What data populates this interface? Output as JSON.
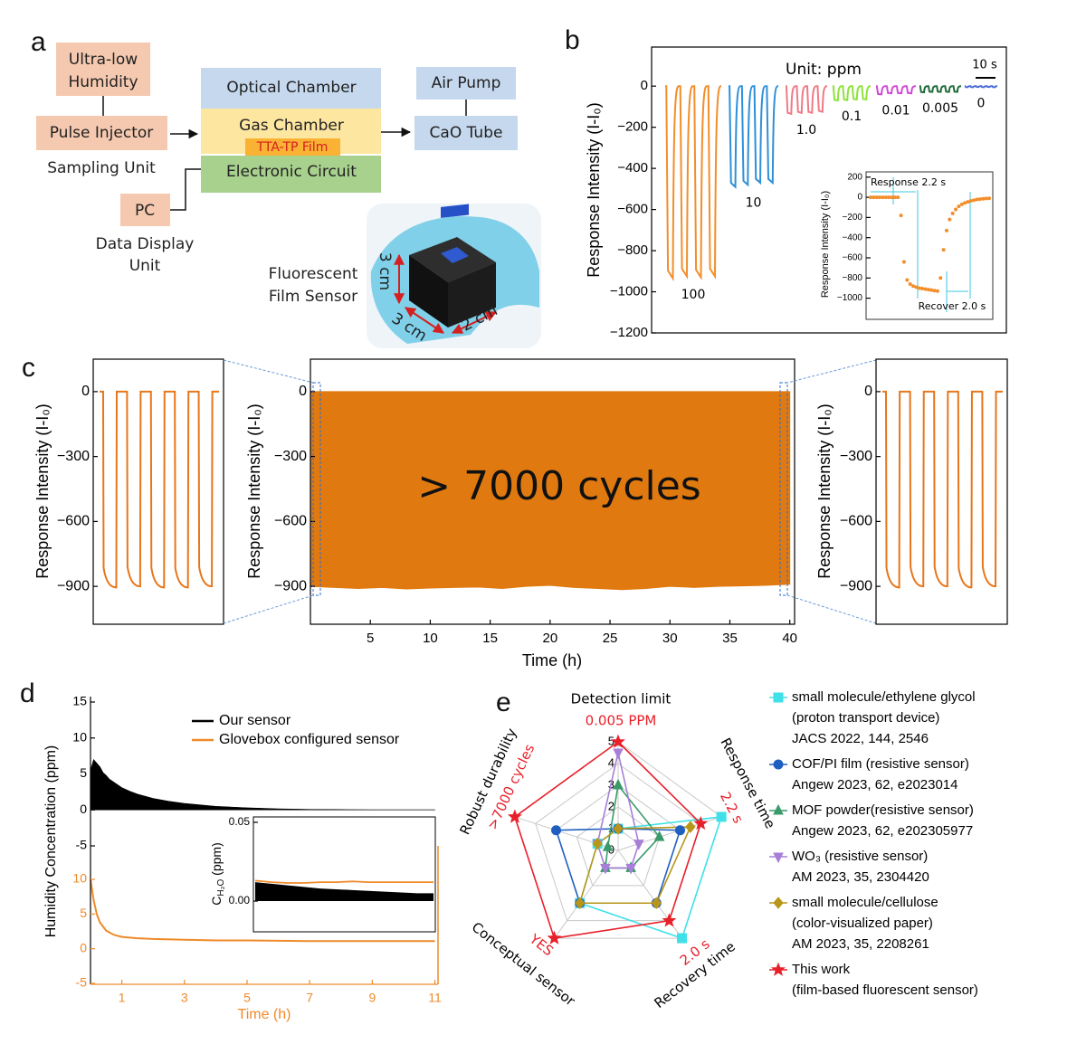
{
  "panel_labels": [
    "a",
    "b",
    "c",
    "d",
    "e"
  ],
  "diagram": {
    "ultra_low_humidity": [
      "Ultra-low",
      "Humidity"
    ],
    "pulse_injector": "Pulse Injector",
    "sampling_unit": "Sampling Unit",
    "pc": "PC",
    "data_display_unit": [
      "Data Display",
      "Unit"
    ],
    "optical_chamber": "Optical Chamber",
    "gas_chamber": "Gas Chamber",
    "film": "TTA-TP Film",
    "electronic_circuit": "Electronic Circuit",
    "air_pump": "Air Pump",
    "cao_tube": "CaO Tube",
    "sensor_caption": [
      "Fluorescent",
      "Film Sensor"
    ],
    "dimensions": [
      "3 cm",
      "3 cm",
      "2 cm"
    ]
  },
  "chart_data": [
    {
      "type": "pulses",
      "y_label": "Response Intensity (I-I₀)",
      "annotation": "Unit: ppm",
      "scale_bar": "10 s",
      "ylim": [
        -1200,
        190
      ],
      "yticks": [
        0,
        {
          "value": -200,
          "label": "−200"
        },
        {
          "value": -400,
          "label": "−400"
        },
        {
          "value": -600,
          "label": "−600"
        },
        {
          "value": -800,
          "label": "−800"
        },
        {
          "value": -1000,
          "label": "−1000"
        },
        {
          "value": -1200,
          "label": "−1200"
        }
      ],
      "series": [
        {
          "name": "100",
          "color": "#f28e2b",
          "values": [
            -935,
            -925,
            -930,
            -925
          ]
        },
        {
          "name": "10",
          "color": "#2e8fd8",
          "values": [
            -490,
            -480,
            -470,
            -470
          ]
        },
        {
          "name": "1.0",
          "color": "#f07a86",
          "values": [
            -135,
            -130,
            -130,
            -125
          ]
        },
        {
          "name": "0.1",
          "color": "#8ee23a",
          "values": [
            -70,
            -68,
            -65,
            -65
          ]
        },
        {
          "name": "0.01",
          "color": "#d24ad8",
          "values": [
            -40,
            -35,
            -35,
            -35
          ]
        },
        {
          "name": "0.005",
          "color": "#1f6a3a",
          "values": [
            -30,
            -28,
            -28,
            -28,
            -28
          ]
        },
        {
          "name": "0",
          "color": "#4a6ad8",
          "values": [
            -5,
            -5,
            -4,
            -5,
            -4,
            -5
          ]
        }
      ]
    },
    {
      "type": "scatter",
      "y_label": "Response Intensity (I-I₀)",
      "annotations": [
        "Response 2.2 s",
        "Recover 2.0 s"
      ],
      "color": "#f28e2b",
      "ylim": [
        -1210,
        252
      ],
      "yticks": [
        200,
        0,
        {
          "value": -200,
          "label": "−200"
        },
        {
          "value": -400,
          "label": "−400"
        },
        {
          "value": -600,
          "label": "−600"
        },
        {
          "value": -800,
          "label": "−800"
        },
        {
          "value": -1000,
          "label": "−1000"
        }
      ],
      "values": [
        0,
        0,
        0,
        0,
        0,
        0,
        0,
        0,
        0,
        0,
        -180,
        -640,
        -820,
        -860,
        -880,
        -890,
        -900,
        -905,
        -910,
        -915,
        -920,
        -925,
        -930,
        -800,
        -520,
        -330,
        -220,
        -160,
        -120,
        -90,
        -70,
        -55,
        -45,
        -35,
        -28,
        -22,
        -18,
        -15,
        -12,
        -10
      ]
    },
    {
      "type": "square-pulses",
      "y_label": "Response Intensity (I-I₀)",
      "color": "#e8761a",
      "ylim": [
        -1075,
        150
      ],
      "yticks": [
        0,
        {
          "value": -300,
          "label": "−300"
        },
        {
          "value": -600,
          "label": "−600"
        },
        {
          "value": -900,
          "label": "−900"
        }
      ],
      "values": [
        -905,
        -900,
        -905,
        -905,
        -900
      ]
    },
    {
      "type": "area",
      "y_label": "Response Intensity (I-I₀)",
      "x_label": "Time (h)",
      "annotation": "> 7000 cycles",
      "color": "#e07a10",
      "xlim": [
        0,
        40.4
      ],
      "xticks": [
        5,
        10,
        15,
        20,
        25,
        30,
        35,
        40
      ],
      "ylim": [
        -1075,
        150
      ],
      "yticks": [
        0,
        {
          "value": -300,
          "label": "−300"
        },
        {
          "value": -600,
          "label": "−600"
        },
        {
          "value": -900,
          "label": "−900"
        }
      ],
      "x": [
        0,
        2,
        4,
        6,
        8,
        10,
        12,
        14,
        16,
        18,
        20,
        22,
        24,
        26,
        28,
        30,
        32,
        34,
        36,
        38,
        40
      ],
      "values": [
        -900,
        -905,
        -910,
        -905,
        -912,
        -908,
        -905,
        -903,
        -910,
        -900,
        -895,
        -905,
        -910,
        -915,
        -910,
        -900,
        -905,
        -900,
        -898,
        -895,
        -890
      ]
    },
    {
      "type": "square-pulses",
      "y_label": "Response Intensity (I-I₀)",
      "color": "#e8761a",
      "ylim": [
        -1075,
        150
      ],
      "yticks": [
        0,
        {
          "value": -300,
          "label": "−300"
        },
        {
          "value": -600,
          "label": "−600"
        },
        {
          "value": -900,
          "label": "−900"
        }
      ],
      "values": [
        -905,
        -900,
        -900,
        -905,
        -900
      ]
    },
    {
      "type": "line",
      "y_label": "Humidity Concentration (ppm)",
      "x_label": "Time (h)",
      "legend": "top-right",
      "xlim": [
        0,
        11.1
      ],
      "xticks": [
        1,
        3,
        5,
        7,
        9,
        11
      ],
      "ylim": [
        -5,
        15
      ],
      "yticks": [
        15,
        10,
        5,
        0,
        -5
      ],
      "y2lim": [
        -5,
        10
      ],
      "y2ticks": [
        10,
        5,
        0,
        -5
      ],
      "series": [
        {
          "name": "Our sensor",
          "color": "#000000",
          "x": [
            0,
            0.1,
            0.2,
            0.3,
            0.4,
            0.5,
            0.6,
            0.8,
            1,
            1.25,
            1.5,
            1.75,
            2,
            2.5,
            3,
            3.5,
            4,
            5,
            6,
            7,
            8,
            9,
            10,
            11
          ],
          "values": [
            5.5,
            7,
            6.5,
            6,
            5.2,
            4.8,
            4.3,
            3.7,
            3.1,
            2.6,
            2.2,
            1.9,
            1.6,
            1.2,
            0.9,
            0.7,
            0.5,
            0.3,
            0.15,
            0.08,
            0.05,
            0.03,
            0.02,
            0.02
          ]
        },
        {
          "name": "Glovebox configured  sensor",
          "color": "#ef8a2a",
          "axis": "y2",
          "x": [
            0,
            0.05,
            0.1,
            0.2,
            0.3,
            0.5,
            0.75,
            1,
            1.5,
            2,
            3,
            4,
            5,
            6,
            7,
            8,
            9,
            10,
            11
          ],
          "values": [
            10,
            8.5,
            7,
            5,
            3.8,
            2.6,
            2,
            1.7,
            1.5,
            1.4,
            1.3,
            1.2,
            1.2,
            1.15,
            1.1,
            1.1,
            1.1,
            1.1,
            1.1
          ]
        }
      ]
    },
    {
      "type": "line",
      "y_label": "C",
      "y_label_sub": "H₂O",
      "y_label_unit": " (ppm)",
      "ylim": [
        -0.0195,
        0.0534
      ],
      "yticks": [
        0.05,
        {
          "value": 0,
          "label": "0.00"
        }
      ],
      "series": [
        {
          "color": "#000000",
          "values": [
            0.012,
            0.011,
            0.01,
            0.009,
            0.008,
            0.0075,
            0.007,
            0.0065,
            0.006,
            0.0055,
            0.005,
            0.005
          ]
        },
        {
          "color": "#ef8a2a",
          "values": [
            0.013,
            0.012,
            0.0115,
            0.0115,
            0.012,
            0.012,
            0.0125,
            0.012,
            0.012,
            0.012,
            0.012,
            0.012
          ]
        }
      ]
    },
    {
      "type": "radar",
      "grid": true,
      "axes": [
        "Detection limit",
        "Response time",
        "Recovery time",
        "Conceptual sensor",
        "Robust durability"
      ],
      "axis_annotations": [
        "0.005 PPM",
        "2.2 s",
        "2.0 s",
        "YES",
        ">7000 cycles"
      ],
      "rlim": [
        0,
        5
      ],
      "rticks": [
        0,
        1,
        2,
        3,
        4,
        5
      ],
      "series": [
        {
          "name": "small molecule/ethylene glycol",
          "details": [
            "(proton transport device)",
            "JACS 2022, 144, 2546"
          ],
          "color": "#3fe0e8",
          "marker": "square",
          "values": [
            1,
            5,
            5,
            3,
            1
          ]
        },
        {
          "name": "COF/PI film (resistive sensor)",
          "details": [
            "Angew 2023, 62, e2023014"
          ],
          "color": "#1f5fbf",
          "marker": "circle",
          "values": [
            1,
            3,
            3,
            3,
            3
          ]
        },
        {
          "name": "MOF powder(resistive sensor)",
          "details": [
            "Angew 2023, 62, e202305977"
          ],
          "color": "#3a9a6a",
          "marker": "triangle-up",
          "values": [
            3,
            2,
            1,
            1,
            0.5
          ]
        },
        {
          "name": "WO₃ (resistive sensor)",
          "details": [
            "AM 2023, 35, 2304420"
          ],
          "color": "#a77fd8",
          "marker": "triangle-down",
          "values": [
            4.5,
            1,
            1,
            1,
            1
          ]
        },
        {
          "name": "small molecule/cellulose",
          "details": [
            "(color-visualized paper)",
            "AM 2023, 35, 2208261"
          ],
          "color": "#b8961a",
          "marker": "diamond",
          "values": [
            1,
            3.5,
            3,
            3,
            1
          ]
        },
        {
          "name": "This work",
          "details": [
            "(film-based fluorescent sensor)"
          ],
          "color": "#e8202a",
          "marker": "star",
          "values": [
            5,
            4,
            4,
            5,
            5
          ]
        }
      ]
    }
  ]
}
